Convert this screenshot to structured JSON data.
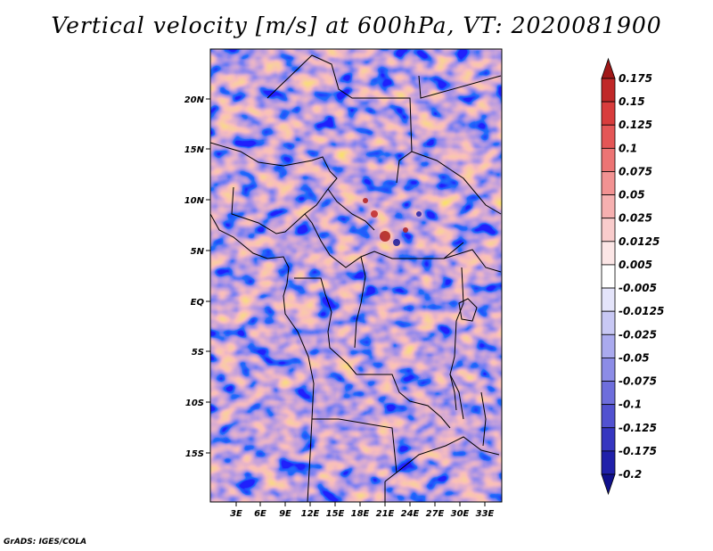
{
  "title": "Vertical velocity [m/s] at 600hPa, VT: 2020081900",
  "credit": "GrADS: IGES/COLA",
  "map": {
    "variable": "Vertical velocity",
    "units": "m/s",
    "level": "600hPa",
    "valid_time": "2020081900",
    "lat_labels": [
      "20N",
      "15N",
      "10N",
      "5N",
      "EQ",
      "5S",
      "10S",
      "15S"
    ],
    "lon_labels": [
      "3E",
      "6E",
      "9E",
      "12E",
      "15E",
      "18E",
      "21E",
      "24E",
      "27E",
      "30E",
      "33E"
    ]
  },
  "colorbar": {
    "labels": [
      "0.175",
      "0.15",
      "0.125",
      "0.1",
      "0.075",
      "0.05",
      "0.025",
      "0.0125",
      "0.005",
      "-0.005",
      "-0.0125",
      "-0.025",
      "-0.05",
      "-0.075",
      "-0.1",
      "-0.125",
      "-0.175",
      "-0.2"
    ],
    "colors": [
      "#a01818",
      "#c02828",
      "#d83c3c",
      "#e45656",
      "#ec7474",
      "#f29292",
      "#f6b0b0",
      "#f9cccc",
      "#fce6e6",
      "#ffffff",
      "#e4e4fa",
      "#c8c8f4",
      "#aaaaee",
      "#8c8ce6",
      "#6e6edc",
      "#5252d0",
      "#3636c0",
      "#2020aa",
      "#10108c"
    ]
  }
}
